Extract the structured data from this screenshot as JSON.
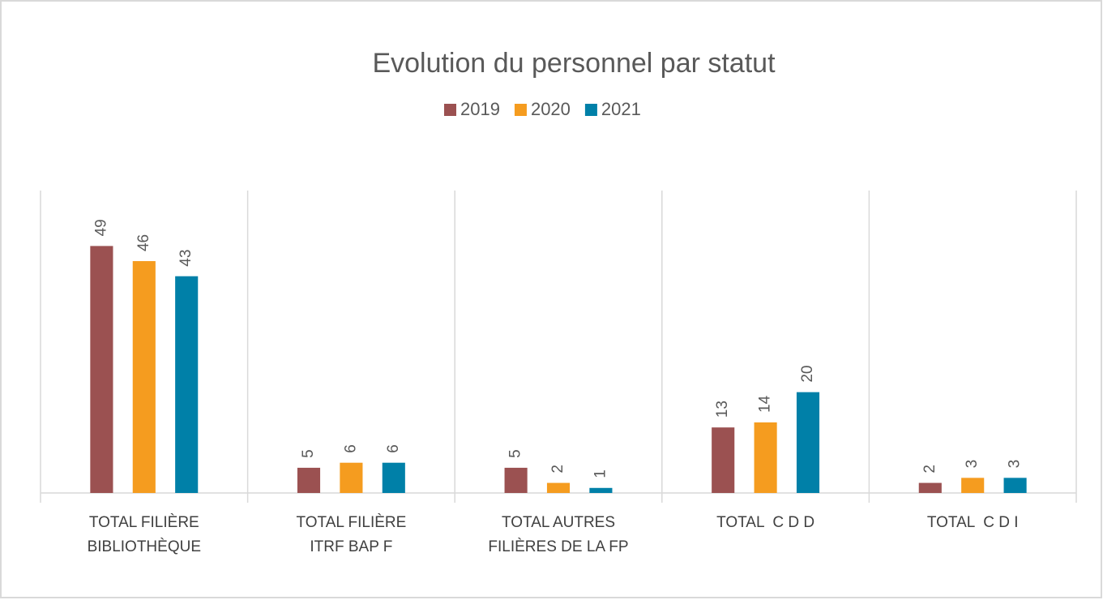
{
  "chart_data": {
    "type": "bar",
    "title": "Evolution du personnel par statut",
    "categories": [
      "TOTAL FILIÈRE\nBIBLIOTHÈQUE",
      "TOTAL FILIÈRE\nITRF BAP F",
      "TOTAL AUTRES\nFILIÈRES DE LA FP",
      "TOTAL  C D D",
      "TOTAL  C D I"
    ],
    "series": [
      {
        "name": "2019",
        "color": "#9b5151",
        "values": [
          49,
          5,
          5,
          13,
          2
        ]
      },
      {
        "name": "2020",
        "color": "#f59c1f",
        "values": [
          46,
          6,
          2,
          14,
          3
        ]
      },
      {
        "name": "2021",
        "color": "#0080a8",
        "values": [
          43,
          6,
          1,
          20,
          3
        ]
      }
    ],
    "ylim": [
      0,
      60
    ],
    "legend": "top"
  }
}
